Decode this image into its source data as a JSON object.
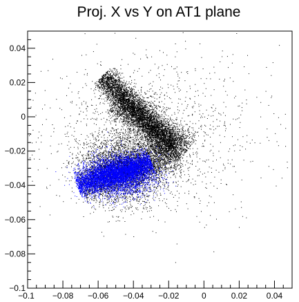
{
  "chart_data": {
    "type": "scatter",
    "title": "Proj. X vs Y on AT1 plane",
    "xlabel": "",
    "ylabel": "",
    "xlim": [
      -0.1,
      0.05
    ],
    "ylim": [
      -0.1,
      0.05
    ],
    "x_ticks": [
      -0.1,
      -0.08,
      -0.06,
      -0.04,
      -0.02,
      0,
      0.02,
      0.04
    ],
    "x_tick_labels": [
      "−0.1",
      "−0.08",
      "−0.06",
      "−0.04",
      "−0.02",
      "0",
      "0.02",
      "0.04"
    ],
    "y_ticks": [
      -0.1,
      -0.08,
      -0.06,
      -0.04,
      -0.02,
      0,
      0.02,
      0.04
    ],
    "y_tick_labels": [
      "−0.1",
      "−0.08",
      "−0.06",
      "−0.04",
      "−0.02",
      "0",
      "0.02",
      "0.04"
    ],
    "grid": false,
    "legend": "none",
    "series": [
      {
        "color": "#000000",
        "description_of_distribution": "",
        "clusters": [
          {
            "shape": "band",
            "from": [
              -0.058,
              0.024
            ],
            "to": [
              -0.018,
              -0.018
            ],
            "width": 0.007,
            "weight": 0.3
          },
          {
            "shape": "band",
            "from": [
              -0.05,
              0.01
            ],
            "to": [
              -0.01,
              -0.02
            ],
            "width": 0.01,
            "weight": 0.18
          },
          {
            "shape": "band",
            "from": [
              -0.07,
              -0.04
            ],
            "to": [
              -0.015,
              -0.02
            ],
            "width": 0.01,
            "weight": 0.2
          },
          {
            "shape": "blob",
            "center": [
              -0.045,
              -0.03
            ],
            "sd": [
              0.012,
              0.01
            ],
            "weight": 0.22
          },
          {
            "shape": "blob",
            "center": [
              -0.03,
              -0.01
            ],
            "sd": [
              0.03,
              0.022
            ],
            "weight": 0.1
          }
        ],
        "approx_points": 14000
      },
      {
        "color": "#0000ff",
        "clusters": [
          {
            "shape": "band",
            "from": [
              -0.072,
              -0.04
            ],
            "to": [
              -0.03,
              -0.026
            ],
            "width": 0.007,
            "weight": 0.55
          },
          {
            "shape": "blob",
            "center": [
              -0.048,
              -0.034
            ],
            "sd": [
              0.01,
              0.006
            ],
            "weight": 0.45
          }
        ],
        "approx_points": 7000
      }
    ]
  }
}
